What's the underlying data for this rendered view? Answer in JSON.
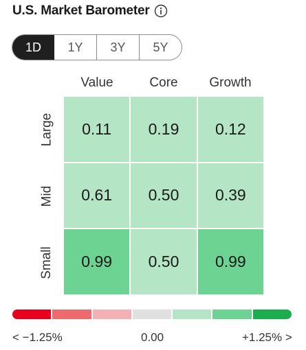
{
  "header": {
    "title": "U.S. Market Barometer",
    "info_icon": "info-circle-icon"
  },
  "tabs": [
    {
      "label": "1D",
      "active": true
    },
    {
      "label": "1Y",
      "active": false
    },
    {
      "label": "3Y",
      "active": false
    },
    {
      "label": "5Y",
      "active": false
    }
  ],
  "grid": {
    "columns": [
      "Value",
      "Core",
      "Growth"
    ],
    "rows": [
      "Large",
      "Mid",
      "Small"
    ],
    "values": [
      [
        "0.11",
        "0.19",
        "0.12"
      ],
      [
        "0.61",
        "0.50",
        "0.39"
      ],
      [
        "0.99",
        "0.50",
        "0.99"
      ]
    ],
    "cell_colors": [
      [
        "#b4e6c6",
        "#b4e6c6",
        "#b4e6c6"
      ],
      [
        "#b4e6c6",
        "#b4e6c6",
        "#b4e6c6"
      ],
      [
        "#6dd393",
        "#b4e6c6",
        "#6dd393"
      ]
    ]
  },
  "legend": {
    "colors": [
      "#e8001c",
      "#ef6a6e",
      "#f3b1b3",
      "#e0e0e0",
      "#b4e6c6",
      "#6dd393",
      "#1aae4c"
    ],
    "min_label": "< −1.25%",
    "mid_label": "0.00",
    "max_label": "+1.25% >"
  }
}
